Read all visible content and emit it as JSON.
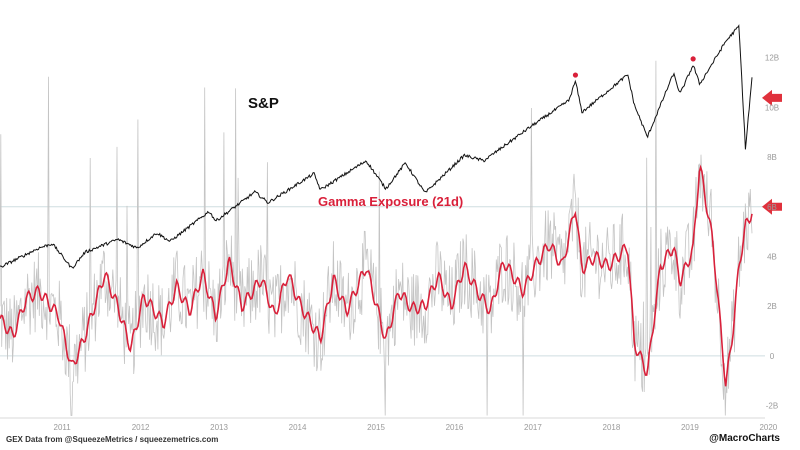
{
  "chart_data": {
    "type": "line",
    "title": "",
    "x_range": [
      "2010-09",
      "2020-04"
    ],
    "x_ticks": [
      "2011",
      "2012",
      "2013",
      "2014",
      "2015",
      "2016",
      "2017",
      "2018",
      "2019",
      "2020"
    ],
    "y_axis_right": {
      "label": "",
      "ticks": [
        "-2B",
        "0",
        "2B",
        "4B",
        "6B",
        "8B",
        "10B",
        "12B"
      ],
      "tick_values": [
        -2,
        0,
        2,
        4,
        6,
        8,
        10,
        12
      ],
      "unit": "billions",
      "ylim": [
        -2.5,
        14
      ]
    },
    "grid": false,
    "reference_lines": [
      0,
      6
    ],
    "series": [
      {
        "name": "S&P",
        "color": "#111111",
        "axis": "hidden",
        "x": [
          "2010-09",
          "2011-03",
          "2011-05",
          "2011-08",
          "2011-10",
          "2012-03",
          "2012-06",
          "2012-09",
          "2012-11",
          "2013-05",
          "2013-06",
          "2013-12",
          "2014-02",
          "2014-09",
          "2014-10",
          "2015-05",
          "2015-08",
          "2015-11",
          "2016-02",
          "2016-08",
          "2016-11",
          "2017-06",
          "2017-12",
          "2018-01",
          "2018-02",
          "2018-09",
          "2018-10",
          "2018-12",
          "2019-04",
          "2019-05",
          "2019-07",
          "2019-08",
          "2019-12",
          "2020-02",
          "2020-03",
          "2020-04"
        ],
        "values": [
          1140,
          1320,
          1360,
          1130,
          1280,
          1400,
          1320,
          1460,
          1380,
          1660,
          1570,
          1840,
          1740,
          2010,
          1860,
          2130,
          1870,
          2110,
          1830,
          2180,
          2130,
          2440,
          2690,
          2870,
          2580,
          2930,
          2650,
          2350,
          2940,
          2750,
          3020,
          2840,
          3240,
          3380,
          2240,
          2900
        ]
      },
      {
        "name": "Gamma Exposure (21d)",
        "color": "#d9203a",
        "axis": "right",
        "x": [
          "2010-09",
          "2010-11",
          "2011-01",
          "2011-03",
          "2011-06",
          "2011-08",
          "2011-10",
          "2012-01",
          "2012-03",
          "2012-05",
          "2012-07",
          "2012-10",
          "2012-12",
          "2013-02",
          "2013-04",
          "2013-06",
          "2013-08",
          "2013-10",
          "2014-01",
          "2014-03",
          "2014-05",
          "2014-07",
          "2014-10",
          "2014-12",
          "2015-02",
          "2015-05",
          "2015-08",
          "2015-10",
          "2015-12",
          "2016-02",
          "2016-04",
          "2016-06",
          "2016-08",
          "2016-10",
          "2016-12",
          "2017-02",
          "2017-05",
          "2017-07",
          "2017-09",
          "2017-11",
          "2018-01",
          "2018-02",
          "2018-04",
          "2018-06",
          "2018-09",
          "2018-10",
          "2018-12",
          "2019-02",
          "2019-04",
          "2019-05",
          "2019-07",
          "2019-08",
          "2019-10",
          "2019-12",
          "2020-01",
          "2020-02",
          "2020-03",
          "2020-04"
        ],
        "values": [
          1.5,
          0.8,
          2.3,
          2.6,
          1.6,
          -0.5,
          0.8,
          3.3,
          2.0,
          0.3,
          2.4,
          1.3,
          2.8,
          1.8,
          3.3,
          1.6,
          3.8,
          2.0,
          3.1,
          1.6,
          3.3,
          2.0,
          0.7,
          3.1,
          1.8,
          3.6,
          0.6,
          2.6,
          1.9,
          2.0,
          3.2,
          2.0,
          3.6,
          2.6,
          1.8,
          3.8,
          2.6,
          3.7,
          4.5,
          3.6,
          6.0,
          3.5,
          4.0,
          3.6,
          4.4,
          0.5,
          -0.7,
          3.6,
          4.4,
          3.0,
          4.3,
          7.7,
          4.6,
          -1.2,
          0.8,
          3.6,
          5.2,
          5.8
        ]
      }
    ],
    "annotations": {
      "series_labels": [
        "S&P",
        "Gamma Exposure (21d)"
      ],
      "peak_markers": [
        "2018-01",
        "2019-07"
      ],
      "right_arrows_for": [
        "S&P",
        "Gamma Exposure (21d)"
      ]
    }
  },
  "colors": {
    "sp_line": "#111111",
    "gex_line": "#d9203a",
    "raw_gex": "#c4c4c4",
    "arrow": "#e0313c",
    "marker": "#d9203a"
  },
  "footer": {
    "source": "GEX Data from @SqueezeMetrics / squeezemetrics.com",
    "credit": "@MacroCharts"
  }
}
